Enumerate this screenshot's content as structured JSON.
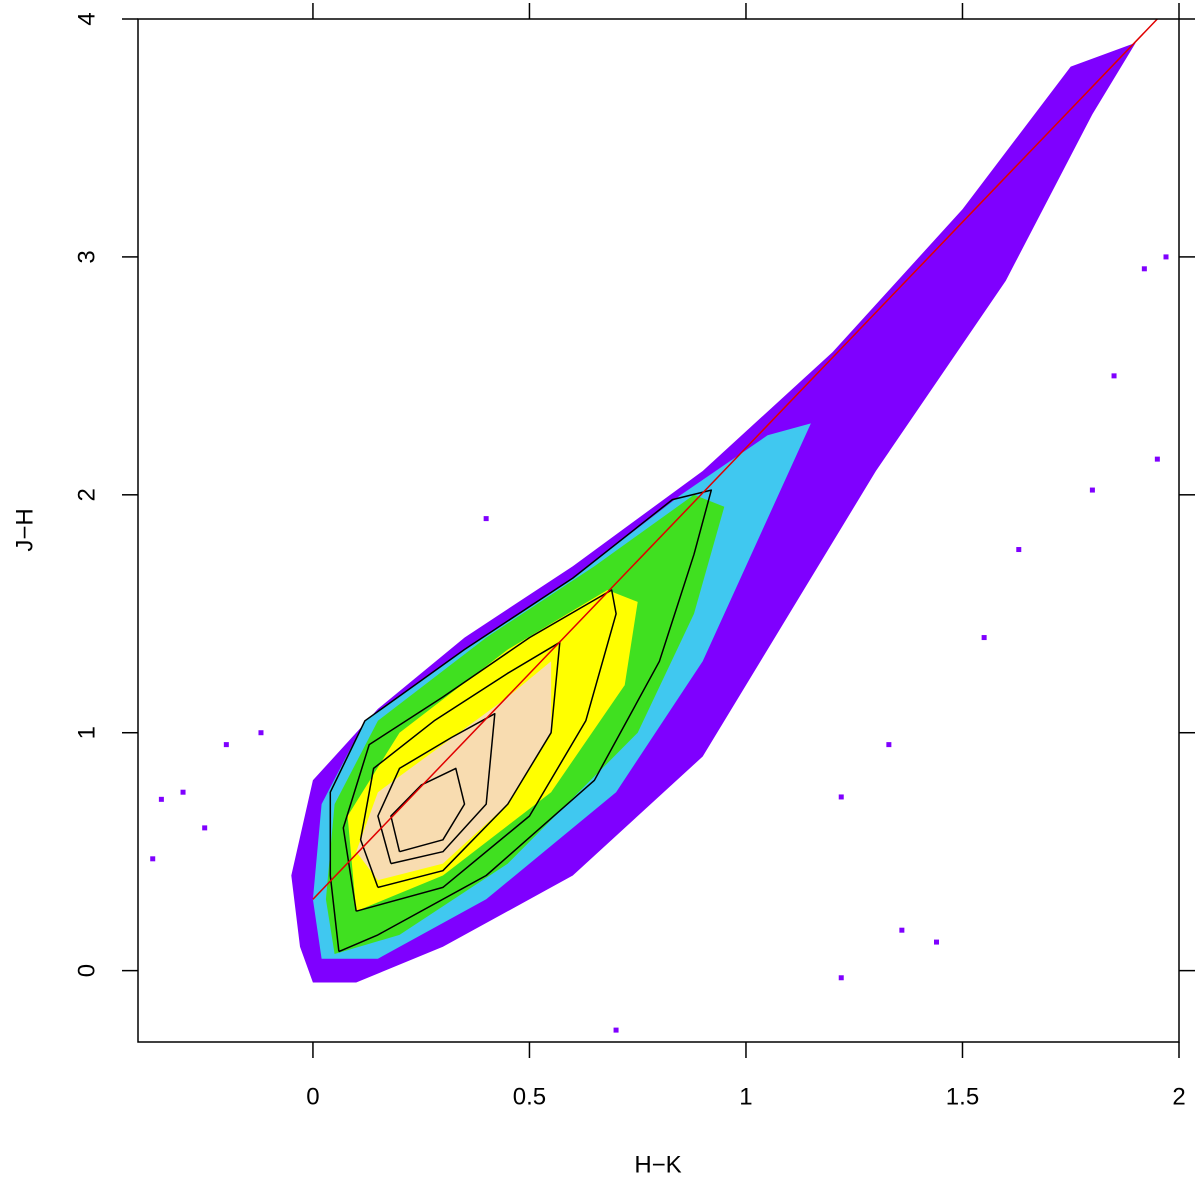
{
  "chart_data": {
    "type": "density",
    "xlabel": "H−K",
    "ylabel": "J−H",
    "xlim": [
      -0.404,
      2.0
    ],
    "ylim": [
      -0.3,
      4.0
    ],
    "xticks": [
      0,
      0.5,
      1,
      1.5,
      2
    ],
    "yticks": [
      0,
      1,
      2,
      3,
      4
    ],
    "regions": [
      {
        "color": "#7f00ff",
        "x": [
          0.0,
          0.1,
          0.3,
          0.6,
          0.9,
          1.1,
          1.3,
          1.6,
          1.8,
          1.9,
          1.75,
          1.5,
          1.2,
          0.9,
          0.6,
          0.35,
          0.15,
          0.0,
          -0.05,
          -0.03
        ],
        "y": [
          -0.05,
          -0.05,
          0.1,
          0.4,
          0.9,
          1.5,
          2.1,
          2.9,
          3.6,
          3.9,
          3.8,
          3.2,
          2.6,
          2.1,
          1.7,
          1.4,
          1.1,
          0.8,
          0.4,
          0.1
        ]
      },
      {
        "color": "#40c8f0",
        "x": [
          0.02,
          0.15,
          0.4,
          0.7,
          0.9,
          1.05,
          1.15,
          1.05,
          0.85,
          0.6,
          0.35,
          0.12,
          0.02,
          0.0
        ],
        "y": [
          0.05,
          0.05,
          0.3,
          0.75,
          1.3,
          1.9,
          2.3,
          2.25,
          2.0,
          1.65,
          1.35,
          1.05,
          0.7,
          0.3
        ]
      },
      {
        "color": "#40e020",
        "x": [
          0.05,
          0.2,
          0.45,
          0.75,
          0.88,
          0.95,
          0.88,
          0.65,
          0.4,
          0.15,
          0.05,
          0.03
        ],
        "y": [
          0.07,
          0.15,
          0.45,
          1.0,
          1.5,
          1.95,
          2.0,
          1.7,
          1.4,
          1.05,
          0.7,
          0.3
        ]
      },
      {
        "color": "#ffff00",
        "x": [
          0.1,
          0.3,
          0.55,
          0.72,
          0.75,
          0.68,
          0.45,
          0.2,
          0.08
        ],
        "y": [
          0.25,
          0.4,
          0.75,
          1.2,
          1.55,
          1.6,
          1.35,
          1.0,
          0.65
        ]
      },
      {
        "color": "#f8dcb0",
        "x": [
          0.15,
          0.3,
          0.45,
          0.55,
          0.55,
          0.45,
          0.3,
          0.15,
          0.1
        ],
        "y": [
          0.38,
          0.45,
          0.7,
          1.0,
          1.3,
          1.15,
          0.95,
          0.75,
          0.5
        ]
      }
    ],
    "points": {
      "color": "#7f00ff",
      "x": [
        -0.35,
        -0.3,
        -0.25,
        -0.2,
        1.22,
        1.33,
        1.44,
        1.36,
        1.22,
        0.7,
        1.63,
        1.8,
        1.95,
        1.92,
        1.97,
        1.85,
        1.55,
        -0.12,
        0.4,
        -0.37
      ],
      "y": [
        0.72,
        0.75,
        0.6,
        0.95,
        0.73,
        0.95,
        0.12,
        0.17,
        -0.03,
        -0.25,
        1.77,
        2.02,
        2.15,
        2.95,
        3.0,
        2.5,
        1.4,
        1.0,
        1.9,
        0.47
      ]
    },
    "contours": [
      {
        "x": [
          0.06,
          0.15,
          0.4,
          0.65,
          0.8,
          0.88,
          0.92,
          0.83,
          0.6,
          0.35,
          0.12,
          0.04,
          0.04,
          0.06
        ],
        "y": [
          0.08,
          0.15,
          0.4,
          0.8,
          1.3,
          1.75,
          2.02,
          1.98,
          1.65,
          1.35,
          1.05,
          0.75,
          0.4,
          0.08
        ]
      },
      {
        "x": [
          0.1,
          0.3,
          0.5,
          0.63,
          0.7,
          0.69,
          0.5,
          0.3,
          0.13,
          0.07,
          0.1
        ],
        "y": [
          0.25,
          0.35,
          0.65,
          1.05,
          1.5,
          1.6,
          1.4,
          1.15,
          0.95,
          0.6,
          0.25
        ]
      },
      {
        "x": [
          0.15,
          0.3,
          0.45,
          0.55,
          0.57,
          0.45,
          0.28,
          0.14,
          0.11,
          0.15
        ],
        "y": [
          0.35,
          0.42,
          0.7,
          1.0,
          1.38,
          1.25,
          1.05,
          0.85,
          0.55,
          0.35
        ]
      },
      {
        "x": [
          0.18,
          0.3,
          0.4,
          0.42,
          0.32,
          0.2,
          0.15,
          0.18
        ],
        "y": [
          0.45,
          0.5,
          0.7,
          1.08,
          0.98,
          0.85,
          0.65,
          0.45
        ]
      },
      {
        "x": [
          0.2,
          0.3,
          0.35,
          0.33,
          0.25,
          0.18,
          0.2
        ],
        "y": [
          0.5,
          0.55,
          0.7,
          0.85,
          0.78,
          0.65,
          0.5
        ]
      }
    ],
    "line": {
      "color": "#e00000",
      "x": [
        0,
        1.95
      ],
      "y": [
        0.3,
        4.0
      ]
    }
  }
}
